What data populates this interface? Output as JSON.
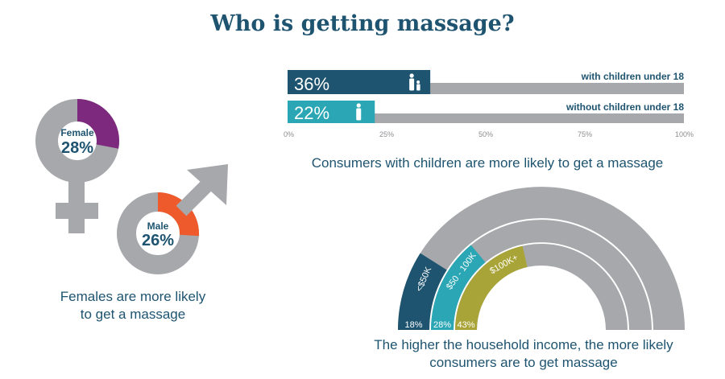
{
  "title": "Who is getting massage?",
  "colors": {
    "navy": "#1e5470",
    "teal": "#2aa6b4",
    "olive": "#a9a437",
    "purple": "#7d2a7e",
    "orange": "#ee5a2b",
    "gray": "#a7a8ab"
  },
  "chart_data": [
    {
      "type": "bar",
      "orientation": "horizontal",
      "categories": [
        "with children under 18",
        "without children under 18"
      ],
      "values": [
        36,
        22
      ],
      "value_labels": [
        "36%",
        "22%"
      ],
      "icons": [
        "parent-child-icon",
        "person-icon"
      ],
      "xlim": [
        0,
        100
      ],
      "xticks": [
        "0%",
        "25%",
        "50%",
        "75%",
        "100%"
      ],
      "caption": "Consumers with children are more likely to get a massage"
    },
    {
      "type": "pie",
      "style": "donut",
      "slices": [
        {
          "label": "Female",
          "value": 28,
          "value_label": "28%",
          "symbol": "female-symbol-icon"
        },
        {
          "label": "Male",
          "value": 26,
          "value_label": "26%",
          "symbol": "male-symbol-icon"
        }
      ],
      "caption_lines": [
        "Females are more likely",
        "to get a massage"
      ]
    },
    {
      "type": "bar",
      "style": "radial",
      "categories": [
        "<$50K",
        "$50 - 100K",
        "$100K+"
      ],
      "values": [
        18,
        28,
        43
      ],
      "value_labels": [
        "18%",
        "28%",
        "43%"
      ],
      "range": [
        0,
        100
      ],
      "caption_lines": [
        "The higher the household income, the more likely",
        "consumers are to get massage"
      ]
    }
  ]
}
